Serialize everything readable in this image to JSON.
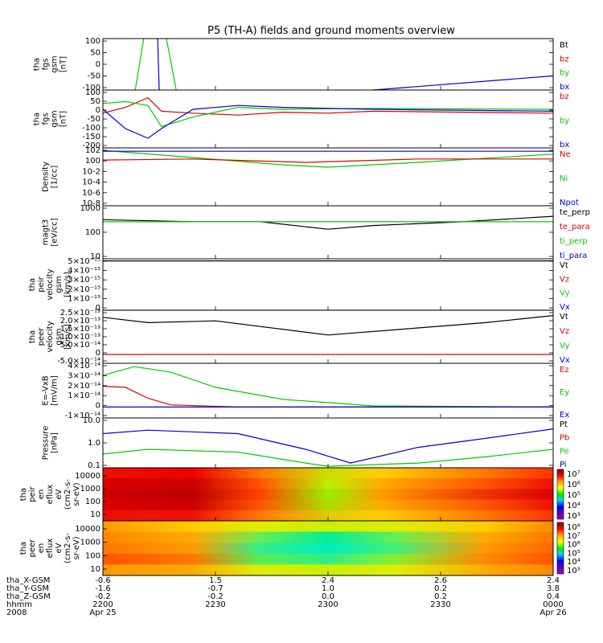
{
  "title": "P5 (TH-A) fields and ground moments overview",
  "colors": {
    "black": "#000000",
    "red": "#e00000",
    "green": "#00cc00",
    "blue": "#0000d0",
    "yellow": "#ffff00"
  },
  "footer": {
    "row_labels": [
      "tha_X-GSM",
      "tha_Y-GSM",
      "tha_Z-GSM",
      "hhmm",
      "2008"
    ],
    "columns": [
      [
        "-0.6",
        "-1.6",
        "-0.2",
        "2200",
        "Apr 25"
      ],
      [
        "1.5",
        "-0.7",
        "-0.2",
        "2230",
        ""
      ],
      [
        "2.4",
        "1.0",
        "0.0",
        "2300",
        ""
      ],
      [
        "2.6",
        "0.2",
        "0.2",
        "2330",
        ""
      ],
      [
        "2.4",
        "3.8",
        "0.4",
        "0000",
        "Apr 26"
      ]
    ]
  },
  "chart_data": [
    {
      "type": "line",
      "ylabel": [
        "tha",
        "fgs",
        "gsm",
        "[nT]"
      ],
      "ylim": [
        -100,
        100
      ],
      "yticks": [
        "100",
        "50",
        "0",
        "-50",
        "-100"
      ],
      "legend": [
        {
          "name": "Bt",
          "color": "black"
        },
        {
          "name": "bz",
          "color": "red"
        },
        {
          "name": "by",
          "color": "green"
        },
        {
          "name": "bx",
          "color": "blue"
        }
      ],
      "series": [
        {
          "name": "by",
          "color": "green",
          "x": [
            0.07,
            0.1,
            0.13,
            0.165
          ],
          "y": [
            -120,
            200,
            200,
            -120
          ]
        },
        {
          "name": "bx",
          "color": "blue",
          "x": [
            0.12,
            0.125,
            0.13,
            0.47,
            0.6,
            1.0
          ],
          "y": [
            200,
            -100,
            -130,
            -130,
            -100,
            -45
          ]
        }
      ]
    },
    {
      "type": "line",
      "ylabel": [
        "tha",
        "fgs",
        "gsm",
        "[nT]"
      ],
      "ylim": [
        -200,
        100
      ],
      "yticks": [
        "100",
        "50",
        "0",
        "-50",
        "-100",
        "-150",
        "-200"
      ],
      "legend": [
        {
          "name": "bz",
          "color": "red"
        },
        {
          "name": "by",
          "color": "green"
        },
        {
          "name": "bx",
          "color": "blue"
        }
      ],
      "series": [
        {
          "name": "bz",
          "color": "red",
          "x": [
            0.0,
            0.05,
            0.1,
            0.13,
            0.2,
            0.3,
            0.4,
            0.5,
            0.6,
            1.0
          ],
          "y": [
            -20,
            10,
            60,
            -10,
            -20,
            -30,
            -15,
            -20,
            -10,
            -20
          ]
        },
        {
          "name": "by",
          "color": "green",
          "x": [
            0.0,
            0.05,
            0.1,
            0.13,
            0.2,
            0.3,
            0.4,
            0.6,
            1.0
          ],
          "y": [
            30,
            40,
            20,
            -90,
            -40,
            10,
            0,
            5,
            0
          ]
        },
        {
          "name": "bx",
          "color": "blue",
          "x": [
            0.0,
            0.05,
            0.1,
            0.13,
            0.2,
            0.3,
            0.4,
            0.6,
            1.0
          ],
          "y": [
            0,
            -100,
            -150,
            -100,
            0,
            20,
            10,
            0,
            -10
          ]
        }
      ]
    },
    {
      "type": "line",
      "ylog": true,
      "ylabel": [
        "Density",
        "[1/cc]"
      ],
      "ylim": [
        1e-09,
        1000.0
      ],
      "yticks": [
        "10^2",
        "10^0",
        "10^-2",
        "10^-4",
        "10^-6",
        "10^-8"
      ],
      "legend": [
        {
          "name": "Ne",
          "color": "red"
        },
        {
          "name": "Ni",
          "color": "green"
        },
        {
          "name": "Npot",
          "color": "blue"
        }
      ],
      "series": [
        {
          "name": "Ni",
          "color": "green",
          "x": [
            0.0,
            0.2,
            0.4,
            0.5,
            0.7,
            1.0
          ],
          "y": [
            300,
            10,
            0.3,
            0.1,
            1,
            50
          ]
        },
        {
          "name": "Ne",
          "color": "red",
          "x": [
            0.0,
            0.2,
            0.45,
            0.7,
            1.0
          ],
          "y": [
            3,
            5,
            1,
            5,
            5
          ]
        },
        {
          "name": "Npot",
          "color": "blue",
          "x": [
            0.0,
            1.0
          ],
          "y": [
            200,
            200
          ]
        }
      ]
    },
    {
      "type": "line",
      "ylog": true,
      "ylabel": [
        "magt3",
        "[eV/cc]"
      ],
      "ylim": [
        10,
        1000
      ],
      "yticks": [
        "1000",
        "100",
        "10"
      ],
      "legend": [
        {
          "name": "te_perp",
          "color": "black"
        },
        {
          "name": "te_para",
          "color": "red"
        },
        {
          "name": "ti_perp",
          "color": "green"
        },
        {
          "name": "ti_para",
          "color": "blue"
        }
      ],
      "series": [
        {
          "name": "te_perp",
          "color": "black",
          "x": [
            0.0,
            0.2,
            0.35,
            0.5,
            0.6,
            0.8,
            1.0
          ],
          "y": [
            300,
            250,
            250,
            130,
            180,
            250,
            400
          ]
        },
        {
          "name": "ti_perp",
          "color": "green",
          "x": [
            0.0,
            1.0
          ],
          "y": [
            250,
            250
          ]
        }
      ]
    },
    {
      "type": "line",
      "ylabel": [
        "tha",
        "peir",
        "velocity",
        "gsm",
        "[km/s]"
      ],
      "ylim": [
        0,
        5e-15
      ],
      "yticks": [
        "5×10⁻¹⁵",
        "4×10⁻¹⁵",
        "3×10⁻¹⁵",
        "2×10⁻¹⁵",
        "1×10⁻¹⁵",
        "0"
      ],
      "legend": [
        {
          "name": "Vt",
          "color": "black"
        },
        {
          "name": "Vz",
          "color": "red"
        },
        {
          "name": "Vy",
          "color": "green"
        },
        {
          "name": "Vx",
          "color": "blue"
        }
      ],
      "series": [
        {
          "name": "Vt",
          "color": "black",
          "x": [
            0.0,
            1.0
          ],
          "y": [
            4.8e-15,
            4.8e-15
          ]
        },
        {
          "name": "Vz",
          "color": "red",
          "x": [
            0.0,
            1.0
          ],
          "y": [
            0,
            0
          ]
        }
      ]
    },
    {
      "type": "line",
      "ylabel": [
        "tha",
        "peer",
        "velocity",
        "gsm",
        "[km/s]"
      ],
      "ylim": [
        -5e-14,
        2.5e-13
      ],
      "yticks": [
        "2.5×10⁻¹³",
        "2.0×10⁻¹³",
        "1.5×10⁻¹³",
        "1.0×10⁻¹³",
        "5.0×10⁻¹⁴",
        "0",
        "-5.0×10⁻¹⁴"
      ],
      "legend": [
        {
          "name": "Vt",
          "color": "black"
        },
        {
          "name": "Vz",
          "color": "red"
        },
        {
          "name": "Vy",
          "color": "green"
        },
        {
          "name": "Vx",
          "color": "blue"
        }
      ],
      "series": [
        {
          "name": "Vt",
          "color": "black",
          "x": [
            0.0,
            0.1,
            0.25,
            0.5,
            0.7,
            0.85,
            1.0
          ],
          "y": [
            2.1e-13,
            1.8e-13,
            1.9e-13,
            1.1e-13,
            1.5e-13,
            1.8e-13,
            2.2e-13
          ]
        },
        {
          "name": "Vz",
          "color": "red",
          "x": [
            0.0,
            1.0
          ],
          "y": [
            0,
            0
          ]
        }
      ]
    },
    {
      "type": "line",
      "ylabel": [
        "E=-VxB",
        "[mV/m]"
      ],
      "ylim": [
        -1e-14,
        4e-14
      ],
      "yticks": [
        "4×10⁻¹⁴",
        "3×10⁻¹⁴",
        "2×10⁻¹⁴",
        "1×10⁻¹⁴",
        "0",
        "-1×10⁻¹⁴"
      ],
      "legend": [
        {
          "name": "Ez",
          "color": "red"
        },
        {
          "name": "Ey",
          "color": "green"
        },
        {
          "name": "Ex",
          "color": "blue"
        }
      ],
      "series": [
        {
          "name": "Ey",
          "color": "green",
          "x": [
            0.0,
            0.07,
            0.15,
            0.25,
            0.4,
            0.6,
            1.0
          ],
          "y": [
            2.9e-14,
            3.7e-14,
            3.2e-14,
            1.8e-14,
            7e-15,
            1e-15,
            0
          ]
        },
        {
          "name": "Ez",
          "color": "red",
          "x": [
            0.0,
            0.05,
            0.1,
            0.15,
            0.3,
            1.0
          ],
          "y": [
            1.9e-14,
            1.8e-14,
            8e-15,
            2e-15,
            0,
            0
          ]
        },
        {
          "name": "Ex",
          "color": "blue",
          "x": [
            0.0,
            1.0
          ],
          "y": [
            0,
            0
          ]
        }
      ]
    },
    {
      "type": "line",
      "ylog": true,
      "ylabel": [
        "Pressure",
        "[nPa]"
      ],
      "ylim": [
        0.02,
        30
      ],
      "yticks": [
        "10.0",
        "1.0",
        "0.1"
      ],
      "legend": [
        {
          "name": "Pt",
          "color": "black"
        },
        {
          "name": "Pb",
          "color": "red"
        },
        {
          "name": "Pe",
          "color": "green"
        },
        {
          "name": "Pi",
          "color": "blue"
        }
      ],
      "series": [
        {
          "name": "Pi",
          "color": "blue",
          "x": [
            0.0,
            0.1,
            0.3,
            0.45,
            0.55,
            0.7,
            0.85,
            1.0
          ],
          "y": [
            3,
            5,
            3,
            0.3,
            0.04,
            0.4,
            1.5,
            6
          ]
        },
        {
          "name": "Pe",
          "color": "green",
          "x": [
            0.0,
            0.1,
            0.3,
            0.45,
            0.5,
            0.7,
            0.85,
            1.0
          ],
          "y": [
            0.15,
            0.3,
            0.2,
            0.04,
            0.025,
            0.04,
            0.1,
            0.3
          ]
        }
      ]
    },
    {
      "type": "heatmap",
      "ylabel": [
        "tha",
        "peir",
        "en",
        "eflux",
        "eV",
        "(cm2-s-",
        "sr-eV)"
      ],
      "yticks": [
        "10000",
        "1000",
        "100",
        "10"
      ],
      "colorbar_ticks": [
        "10⁷",
        "10⁶",
        "10⁵",
        "10⁴",
        "10³"
      ],
      "columns": [
        {
          "x": 0.0,
          "colors": [
            "#ee1100",
            "#dd0000",
            "#cc0000",
            "#dd0000",
            "#ee1100"
          ]
        },
        {
          "x": 0.2,
          "colors": [
            "#ee0000",
            "#cc0000",
            "#bb0000",
            "#cc0000",
            "#ee1100"
          ]
        },
        {
          "x": 0.35,
          "colors": [
            "#ff7700",
            "#ff5500",
            "#ff4400",
            "#ff5500",
            "#ff7700"
          ]
        },
        {
          "x": 0.5,
          "colors": [
            "#ccdd00",
            "#bbee00",
            "#99ee00",
            "#aadd00",
            "#ddcc00"
          ]
        },
        {
          "x": 0.62,
          "colors": [
            "#ffcc00",
            "#ffaa00",
            "#ff9900",
            "#ffaa00",
            "#ffcc00"
          ]
        },
        {
          "x": 0.85,
          "colors": [
            "#ff7700",
            "#ff5500",
            "#ee3300",
            "#ff5500",
            "#ff7700"
          ]
        },
        {
          "x": 1.0,
          "colors": [
            "#ff3300",
            "#ee1100",
            "#dd0000",
            "#ee1100",
            "#ff3300"
          ]
        }
      ]
    },
    {
      "type": "heatmap",
      "ylabel": [
        "tha",
        "peer",
        "en",
        "eflux",
        "eV",
        "(cm2-s-",
        "sr-eV)"
      ],
      "yticks": [
        "10000",
        "1000",
        "100",
        "10"
      ],
      "colorbar_ticks": [
        "10⁸",
        "10⁷",
        "10⁶",
        "10⁵",
        "10⁴",
        "10³"
      ],
      "columns": [
        {
          "x": 0.0,
          "colors": [
            "#ff9900",
            "#ff8800",
            "#ff7700",
            "#ff5500",
            "#ff9900"
          ]
        },
        {
          "x": 0.2,
          "colors": [
            "#ffcc00",
            "#ffaa00",
            "#ff9900",
            "#ff7700",
            "#ffaa00"
          ]
        },
        {
          "x": 0.35,
          "colors": [
            "#ddee00",
            "#66ee55",
            "#33ee88",
            "#55ee55",
            "#ddee00"
          ]
        },
        {
          "x": 0.5,
          "colors": [
            "#ccee00",
            "#00ee99",
            "#00eebb",
            "#33ee88",
            "#ccee00"
          ]
        },
        {
          "x": 0.65,
          "colors": [
            "#ddee00",
            "#66ee55",
            "#44ee77",
            "#88ee33",
            "#ddee00"
          ]
        },
        {
          "x": 0.85,
          "colors": [
            "#ffcc00",
            "#ffaa00",
            "#ff9900",
            "#ff8800",
            "#ffaa00"
          ]
        },
        {
          "x": 1.0,
          "colors": [
            "#ff8800",
            "#ff7700",
            "#ff6600",
            "#ff5500",
            "#ff8800"
          ]
        }
      ]
    }
  ]
}
